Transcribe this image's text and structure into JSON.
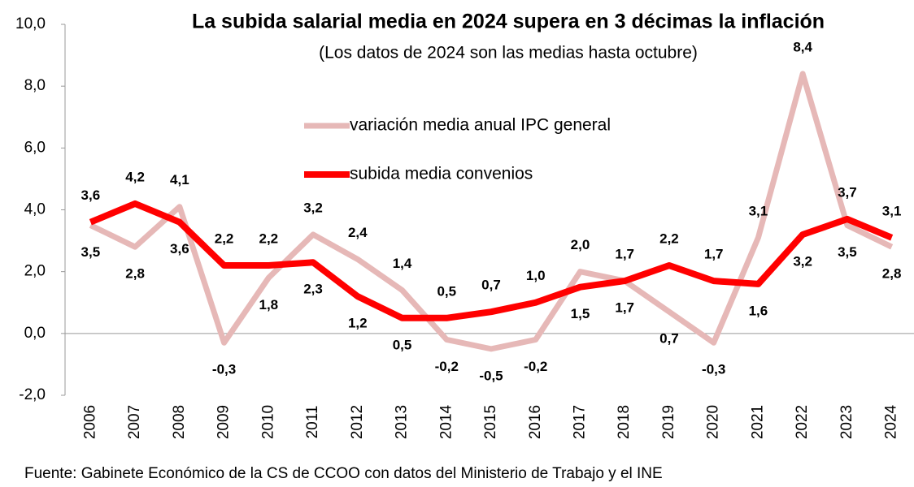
{
  "chart_data": {
    "type": "line",
    "title": "La subida salarial media en 2024 supera en 3 décimas la inflación",
    "subtitle": "(Los datos de 2024 son las medias hasta octubre)",
    "source": "Fuente: Gabinete Económico de la CS de CCOO con datos del Ministerio de Trabajo y el INE",
    "categories": [
      "2006",
      "2007",
      "2008",
      "2009",
      "2010",
      "2011",
      "2012",
      "2013",
      "2014",
      "2015",
      "2016",
      "2017",
      "2018",
      "2019",
      "2020",
      "2021",
      "2022",
      "2023",
      "2024"
    ],
    "series": [
      {
        "name": "variación media anual IPC general",
        "color": "#e6b8b7",
        "label_color": "#000000",
        "values": [
          3.5,
          2.8,
          4.1,
          -0.3,
          1.8,
          3.2,
          2.4,
          1.4,
          -0.2,
          -0.5,
          -0.2,
          2.0,
          1.7,
          0.7,
          -0.3,
          3.1,
          8.4,
          3.5,
          2.8
        ],
        "value_labels": [
          "3,5",
          "2,8",
          "4,1",
          "-0,3",
          "1,8",
          "3,2",
          "2,4",
          "1,4",
          "-0,2",
          "-0,5",
          "-0,2",
          "2,0",
          "1,7",
          "0,7",
          "-0,3",
          "3,1",
          "8,4",
          "3,5",
          "2,8"
        ]
      },
      {
        "name": "subida media convenios",
        "color": "#ff0000",
        "label_color": "#ff0000",
        "values": [
          3.6,
          4.2,
          3.6,
          2.2,
          2.2,
          2.3,
          1.2,
          0.5,
          0.5,
          0.7,
          1.0,
          1.5,
          1.7,
          2.2,
          1.7,
          1.6,
          3.2,
          3.7,
          3.1
        ],
        "value_labels": [
          "3,6",
          "4,2",
          "3,6",
          "2,2",
          "2,2",
          "2,3",
          "1,2",
          "0,5",
          "0,5",
          "0,7",
          "1,0",
          "1,5",
          "1,7",
          "2,2",
          "1,7",
          "1,6",
          "3,2",
          "3,7",
          "3,1"
        ]
      }
    ],
    "ylim": [
      -2,
      10
    ],
    "yticks": [
      {
        "value": -2,
        "label": "-2,0"
      },
      {
        "value": 0,
        "label": "0,0"
      },
      {
        "value": 2,
        "label": "2,0"
      },
      {
        "value": 4,
        "label": "4,0"
      },
      {
        "value": 6,
        "label": "6,0"
      },
      {
        "value": 8,
        "label": "8,0"
      },
      {
        "value": 10,
        "label": "10,0"
      }
    ]
  }
}
